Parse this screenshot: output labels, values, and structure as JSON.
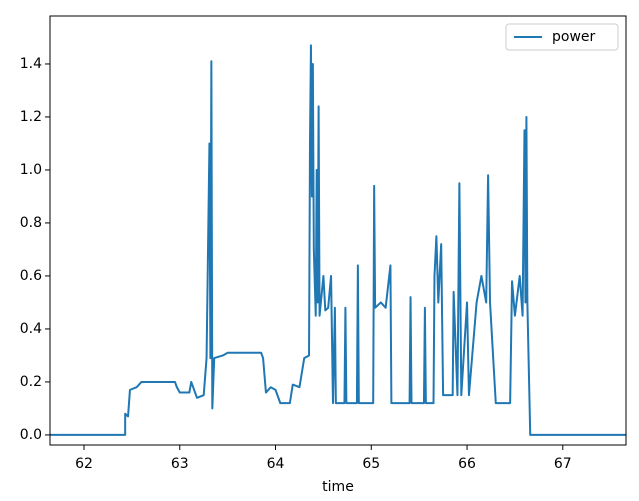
{
  "chart_data": {
    "type": "line",
    "xlabel": "time",
    "x": [
      61.645,
      62.43,
      62.43,
      62.46,
      62.48,
      62.55,
      62.6,
      62.95,
      62.97,
      63.0,
      63.1,
      63.12,
      63.18,
      63.25,
      63.28,
      63.31,
      63.32,
      63.33,
      63.34,
      63.36,
      63.45,
      63.5,
      63.85,
      63.87,
      63.9,
      63.95,
      64.0,
      64.05,
      64.15,
      64.18,
      64.25,
      64.3,
      64.35,
      64.36,
      64.37,
      64.38,
      64.39,
      64.4,
      64.42,
      64.43,
      64.44,
      64.45,
      64.46,
      64.5,
      64.52,
      64.55,
      64.58,
      64.6,
      64.62,
      64.63,
      64.72,
      64.73,
      64.74,
      64.85,
      64.86,
      64.87,
      65.02,
      65.03,
      65.04,
      65.1,
      65.15,
      65.2,
      65.21,
      65.4,
      65.41,
      65.42,
      65.55,
      65.56,
      65.57,
      65.65,
      65.66,
      65.68,
      65.7,
      65.73,
      65.75,
      65.85,
      65.86,
      65.9,
      65.92,
      65.94,
      66.0,
      66.02,
      66.1,
      66.15,
      66.2,
      66.22,
      66.24,
      66.3,
      66.45,
      66.47,
      66.5,
      66.55,
      66.58,
      66.6,
      66.61,
      66.62,
      66.63,
      66.66,
      67.66
    ],
    "series": [
      {
        "name": "power",
        "color": "#1f77b4",
        "values": [
          0,
          0,
          0.08,
          0.07,
          0.17,
          0.18,
          0.2,
          0.2,
          0.18,
          0.16,
          0.16,
          0.2,
          0.14,
          0.15,
          0.29,
          1.1,
          0.29,
          1.41,
          0.1,
          0.29,
          0.3,
          0.31,
          0.31,
          0.29,
          0.16,
          0.18,
          0.17,
          0.12,
          0.12,
          0.19,
          0.18,
          0.29,
          0.3,
          1.1,
          1.47,
          0.9,
          1.4,
          0.7,
          0.45,
          1.0,
          0.5,
          1.24,
          0.45,
          0.6,
          0.47,
          0.48,
          0.6,
          0.12,
          0.48,
          0.12,
          0.12,
          0.48,
          0.12,
          0.12,
          0.64,
          0.12,
          0.12,
          0.94,
          0.48,
          0.5,
          0.48,
          0.64,
          0.12,
          0.12,
          0.52,
          0.12,
          0.12,
          0.48,
          0.12,
          0.12,
          0.6,
          0.75,
          0.5,
          0.72,
          0.15,
          0.15,
          0.54,
          0.15,
          0.95,
          0.15,
          0.5,
          0.15,
          0.5,
          0.6,
          0.5,
          0.98,
          0.5,
          0.12,
          0.12,
          0.58,
          0.45,
          0.6,
          0.45,
          1.15,
          0.5,
          1.2,
          0.5,
          0,
          0
        ]
      }
    ],
    "xlim": [
      61.645,
      67.66
    ],
    "ylim": [
      -0.038,
      1.581
    ],
    "xticks": [
      62,
      63,
      64,
      65,
      66,
      67
    ],
    "yticks": [
      {
        "value": 0,
        "label": "0.0"
      },
      {
        "value": 0.2,
        "label": "0.2"
      },
      {
        "value": 0.4,
        "label": "0.4"
      },
      {
        "value": 0.6,
        "label": "0.6"
      },
      {
        "value": 0.8,
        "label": "0.8"
      },
      {
        "value": 1.0,
        "label": "1.0"
      },
      {
        "value": 1.2,
        "label": "1.2"
      },
      {
        "value": 1.4,
        "label": "1.4"
      }
    ],
    "legend": "upper right",
    "grid": false
  }
}
